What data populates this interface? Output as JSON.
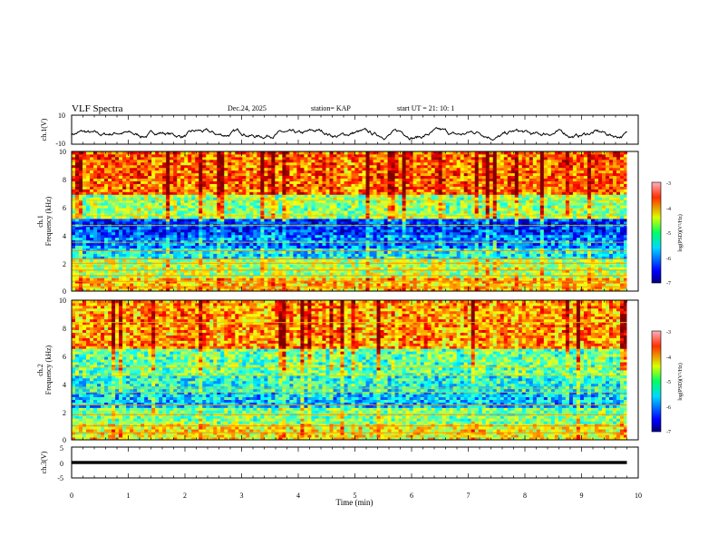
{
  "header": {
    "title": "VLF Spectra",
    "date": "Dec.24, 2025",
    "station": "station= KAP",
    "start": "start  UT =   21: 10: 1"
  },
  "colorbar": {
    "label": "log(PSD)(V²/Hz)",
    "ticks": [
      "-3",
      "-4",
      "-5",
      "-6",
      "-7"
    ]
  },
  "chart_data": [
    {
      "type": "line",
      "name": "ch1-waveform",
      "ylabel": "ch.1(V)",
      "ylim": [
        -10,
        10
      ],
      "yticks": [
        "10",
        "-10"
      ],
      "x_range_min": [
        0,
        9.8
      ],
      "mean": -3,
      "amplitude": 3.5
    },
    {
      "type": "heatmap",
      "name": "ch1-spectrogram",
      "ylabel_top": "ch.1",
      "ylabel": "Frequency (kHz)",
      "ylim": [
        0,
        10
      ],
      "yticks": [
        "0",
        "2",
        "4",
        "6",
        "8",
        "10"
      ],
      "xlim_min": [
        0,
        10
      ],
      "clim": [
        -7,
        -3
      ],
      "bands": [
        {
          "from": 0,
          "to": 1,
          "level": -4.3
        },
        {
          "from": 1,
          "to": 2.3,
          "level": -4.8
        },
        {
          "from": 2.3,
          "to": 3,
          "level": -5.5
        },
        {
          "from": 3,
          "to": 4,
          "level": -6.0
        },
        {
          "from": 4,
          "to": 5.2,
          "level": -6.3
        },
        {
          "from": 5.2,
          "to": 7,
          "level": -4.9
        },
        {
          "from": 7,
          "to": 10,
          "level": -3.9
        }
      ],
      "lines_khz": [
        0.3,
        0.7,
        1.1,
        1.5,
        2.0,
        2.3,
        2.9,
        3.5,
        4.7,
        5.4,
        6.5
      ]
    },
    {
      "type": "heatmap",
      "name": "ch2-spectrogram",
      "ylabel_top": "ch.2",
      "ylabel": "Frequency (kHz)",
      "ylim": [
        0,
        10
      ],
      "yticks": [
        "0",
        "2",
        "4",
        "6",
        "8",
        "10"
      ],
      "xlim_min": [
        0,
        10
      ],
      "clim": [
        -7,
        -3
      ],
      "bands": [
        {
          "from": 0,
          "to": 1.2,
          "level": -4.5
        },
        {
          "from": 1.2,
          "to": 2.3,
          "level": -5.0
        },
        {
          "from": 2.3,
          "to": 3.4,
          "level": -5.7
        },
        {
          "from": 3.4,
          "to": 4.6,
          "level": -5.4
        },
        {
          "from": 4.6,
          "to": 6.5,
          "level": -5.1
        },
        {
          "from": 6.5,
          "to": 10,
          "level": -4.1
        }
      ],
      "lines_khz": [
        0.5,
        1.0,
        1.8,
        2.5,
        3.4,
        3.7,
        4.6,
        5.2,
        8.4
      ]
    },
    {
      "type": "line",
      "name": "ch3-waveform",
      "ylabel": "ch.3(V)",
      "ylim": [
        -5,
        5
      ],
      "yticks": [
        "5",
        "0",
        "-5"
      ],
      "x_range_min": [
        0,
        9.8
      ],
      "mean": 0,
      "band_halfwidth": 0.5
    }
  ],
  "xaxis": {
    "label": "Time (min)",
    "ticks": [
      "0",
      "1",
      "2",
      "3",
      "4",
      "5",
      "6",
      "7",
      "8",
      "9",
      "10"
    ]
  }
}
